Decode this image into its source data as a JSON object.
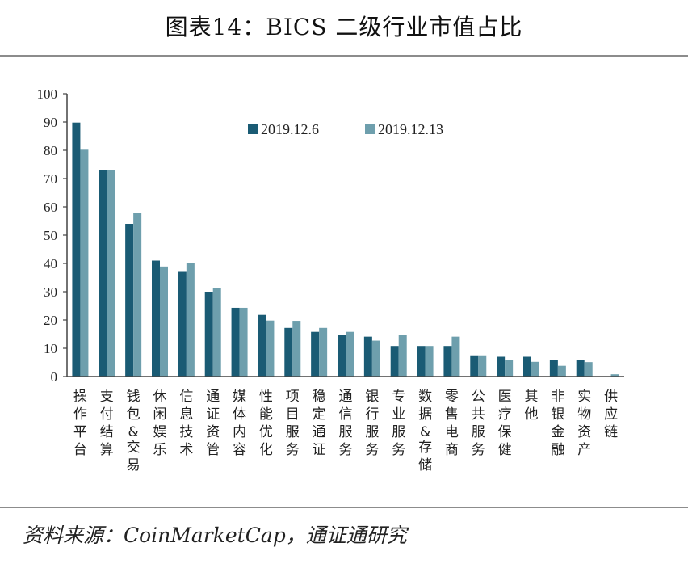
{
  "header": {
    "title": "图表14：BICS 二级行业市值占比"
  },
  "footer": {
    "source": "资料来源：CoinMarketCap，通证通研究"
  },
  "colors": {
    "series1": "#1a5b74",
    "series2": "#6e9fad",
    "axis": "#444444"
  },
  "chart_data": {
    "type": "bar",
    "title": "",
    "xlabel": "",
    "ylabel": "",
    "ylim": [
      0,
      100
    ],
    "yticks": [
      0,
      10,
      20,
      30,
      40,
      50,
      60,
      70,
      80,
      90,
      100
    ],
    "grid": false,
    "legend_position": "top-center",
    "categories": [
      "操作平台",
      "支付结算",
      "钱包&交易",
      "休闲娱乐",
      "信息技术",
      "通证资管",
      "媒体内容",
      "性能优化",
      "项目服务",
      "稳定通证",
      "通信服务",
      "银行服务",
      "专业服务",
      "数据&存储",
      "零售电商",
      "公共服务",
      "医疗保健",
      "其他",
      "非银金融",
      "实物资产",
      "供应链"
    ],
    "series": [
      {
        "name": "2019.12.6",
        "values": [
          89.8,
          73.0,
          54.0,
          41.0,
          37.0,
          30.0,
          24.3,
          21.8,
          17.2,
          15.8,
          14.8,
          14.1,
          10.8,
          10.8,
          10.8,
          7.5,
          7.0,
          7.0,
          5.8,
          5.8,
          0.0
        ]
      },
      {
        "name": "2019.12.13",
        "values": [
          80.2,
          73.0,
          57.9,
          38.9,
          40.2,
          31.3,
          24.3,
          19.8,
          19.7,
          17.2,
          15.8,
          12.7,
          14.6,
          10.8,
          14.1,
          7.5,
          5.8,
          5.2,
          3.8,
          5.1,
          0.8
        ]
      }
    ]
  }
}
